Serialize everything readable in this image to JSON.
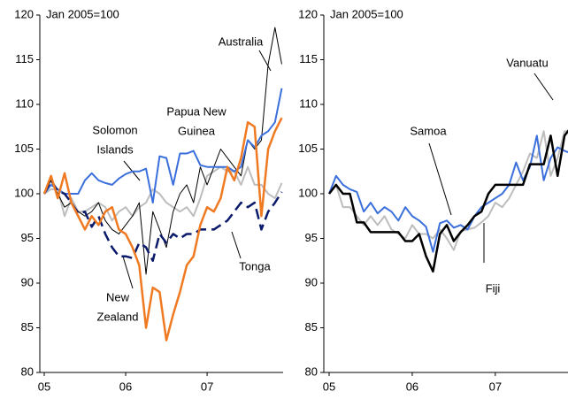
{
  "chart_data": [
    {
      "type": "line",
      "note": "Jan 2005=100",
      "x": [
        0,
        1,
        2,
        3,
        4,
        5,
        6,
        7,
        8,
        9,
        10,
        11,
        12,
        13,
        14,
        15,
        16,
        17,
        18,
        19,
        20,
        21,
        22,
        23,
        24,
        25,
        26,
        27,
        28,
        29,
        30,
        31,
        32,
        33,
        34,
        35
      ],
      "xlim": [
        -0.65,
        35.2
      ],
      "xticks": [
        {
          "value": 0,
          "label": "05"
        },
        {
          "value": 12,
          "label": "06"
        },
        {
          "value": 24,
          "label": "07"
        }
      ],
      "ylim": [
        80,
        120
      ],
      "yticks": [
        80,
        85,
        90,
        95,
        100,
        105,
        110,
        115,
        120
      ],
      "series": [
        {
          "name": "Solomon Islands",
          "color": "#bdbdbd",
          "width": 2,
          "values": [
            100,
            100.5,
            100.5,
            97.5,
            99.5,
            98,
            98,
            98.5,
            99,
            98.5,
            97,
            98,
            98.5,
            97.5,
            98.5,
            99,
            100.5,
            100,
            99,
            98.5,
            98,
            98.5,
            97.5,
            99.5,
            102,
            102.5,
            103,
            102.5,
            102.5,
            101,
            103,
            101,
            101,
            100,
            99.5,
            101.2
          ]
        },
        {
          "name": "Australia",
          "color": "#000000",
          "width": 1,
          "values": [
            100,
            101.5,
            100,
            98.5,
            99,
            98,
            97.5,
            98,
            99,
            97,
            96,
            95.5,
            96.5,
            97.5,
            99,
            91,
            98,
            96,
            94,
            98,
            100,
            101,
            99,
            103,
            101,
            103,
            105,
            104,
            103,
            102,
            106,
            105,
            106,
            114.5,
            118.6,
            114.5
          ]
        },
        {
          "name": "Papua New Guinea",
          "color": "#3b6fdc",
          "width": 2,
          "values": [
            100,
            101,
            100.5,
            100,
            100,
            100,
            101.5,
            102.3,
            101.5,
            101.2,
            101,
            101.7,
            102.2,
            102.5,
            102.5,
            102.8,
            99,
            104.2,
            104,
            101,
            104.5,
            104.5,
            104.8,
            103.2,
            103,
            103,
            103,
            103,
            102.5,
            103,
            106,
            105.2,
            106.5,
            107,
            108,
            111.8
          ]
        },
        {
          "name": "Tonga",
          "color": "#0b1a6b",
          "width": 2.5,
          "dash": true,
          "values": [
            100,
            101.5,
            100.3,
            100,
            99,
            97.8,
            98,
            96.3,
            97.5,
            95.5,
            94,
            93,
            93,
            92.8,
            94.5,
            94,
            92.5,
            95.5,
            94.5,
            95.5,
            95,
            95.5,
            95.5,
            96,
            96,
            96,
            96.5,
            97,
            98,
            99,
            98.5,
            99,
            96,
            98,
            99,
            100.2
          ]
        },
        {
          "name": "New Zealand",
          "color": "#f07a22",
          "width": 2.5,
          "values": [
            100,
            102,
            99.5,
            102.3,
            99,
            97.5,
            96,
            97.5,
            96.5,
            98,
            98.5,
            96,
            95.5,
            94,
            92,
            85,
            89.5,
            89,
            83.6,
            86.5,
            89,
            92,
            93,
            96.5,
            98.5,
            98,
            99.5,
            103,
            101.5,
            104,
            108,
            107.5,
            97.5,
            105,
            107,
            108.5
          ]
        }
      ],
      "annotations": [
        [
          "Australia"
        ],
        [
          "Papua New",
          "Guinea"
        ],
        [
          "Solomon",
          "Islands"
        ],
        [
          "New",
          "Zealand"
        ],
        [
          "Tonga"
        ]
      ]
    },
    {
      "type": "line",
      "note": "Jan 2005=100",
      "x": [
        0,
        1,
        2,
        3,
        4,
        5,
        6,
        7,
        8,
        9,
        10,
        11,
        12,
        13,
        14,
        15,
        16,
        17,
        18,
        19,
        20,
        21,
        22,
        23,
        24,
        25,
        26,
        27,
        28,
        29,
        30,
        31,
        32,
        33,
        34,
        35
      ],
      "xlim": [
        -0.77,
        34.5
      ],
      "xticks": [
        {
          "value": 0,
          "label": "05"
        },
        {
          "value": 12,
          "label": "06"
        },
        {
          "value": 24,
          "label": "07"
        }
      ],
      "ylim": [
        80,
        120
      ],
      "yticks": [
        80,
        85,
        90,
        95,
        100,
        105,
        110,
        115,
        120
      ],
      "series": [
        {
          "name": "Fiji",
          "color": "#bdbdbd",
          "width": 2,
          "values": [
            100,
            101,
            98.5,
            98.5,
            97.5,
            96.5,
            97.5,
            96.5,
            97.5,
            96,
            95.5,
            95,
            96.5,
            95.5,
            95.5,
            95,
            96,
            95,
            93.7,
            95.8,
            96,
            96.2,
            96.8,
            97.5,
            99,
            98.5,
            99.5,
            101,
            102.5,
            104.5,
            104,
            107,
            102,
            104,
            107,
            107
          ]
        },
        {
          "name": "Samoa",
          "color": "#3b6fdc",
          "width": 2,
          "values": [
            100,
            102,
            101,
            100.5,
            100.2,
            98,
            99,
            97.8,
            98.5,
            98,
            97,
            98.5,
            97.5,
            97,
            96.3,
            93.5,
            96.7,
            97,
            96.2,
            96.5,
            96,
            97.5,
            98.5,
            99,
            99.5,
            100,
            101,
            103.5,
            101.5,
            103,
            106.5,
            101.5,
            104,
            105.2,
            104.8,
            104.5
          ]
        },
        {
          "name": "Vanuatu",
          "color": "#000000",
          "width": 2.5,
          "values": [
            100,
            101,
            100,
            100,
            96.8,
            96.8,
            95.7,
            95.7,
            95.7,
            95.7,
            95.7,
            94.7,
            94.7,
            95.5,
            93,
            91.3,
            95.5,
            96.5,
            94.7,
            95.7,
            96.5,
            97.5,
            98,
            100,
            101,
            101,
            101,
            101,
            101,
            103.3,
            103.3,
            103.3,
            106.5,
            102,
            106.5,
            107.5
          ]
        }
      ],
      "annotations": [
        [
          "Vanuatu"
        ],
        [
          "Samoa"
        ],
        [
          "Fiji"
        ]
      ]
    }
  ]
}
